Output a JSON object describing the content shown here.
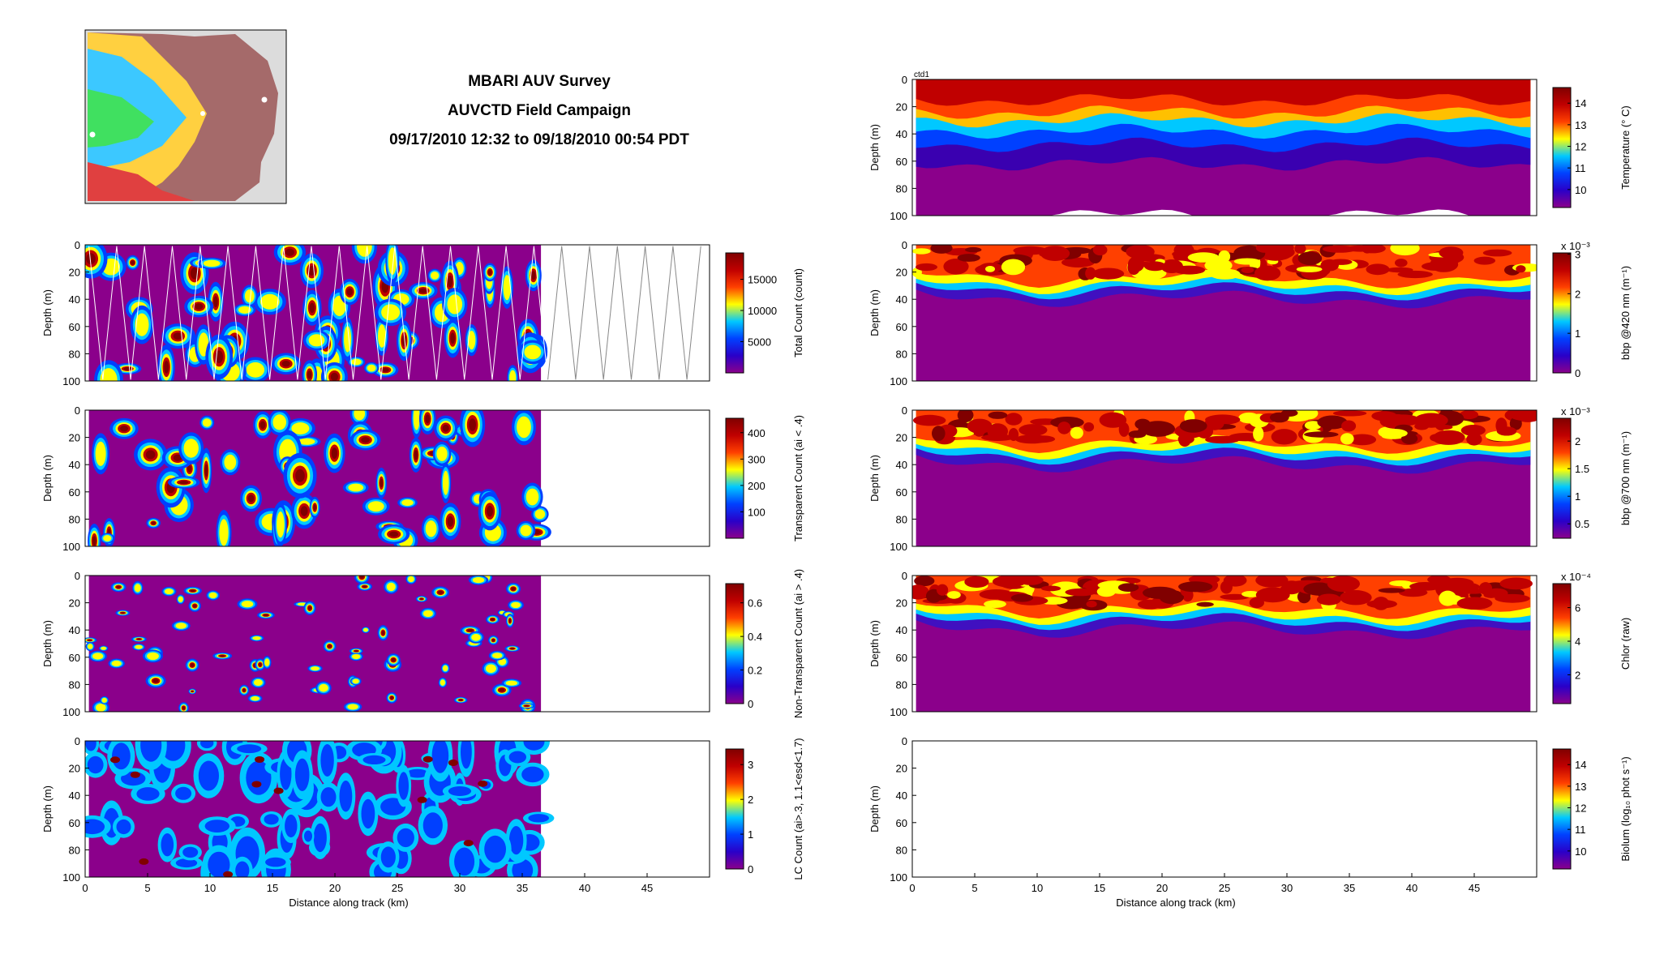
{
  "header": {
    "title_lines": [
      "MBARI AUV Survey",
      "AUVCTD Field Campaign",
      "09/17/2010 12:32 to 09/18/2010 00:54 PDT"
    ]
  },
  "colormap": [
    "#8b008b",
    "#2a00c8",
    "#0040ff",
    "#00c8ff",
    "#ffff00",
    "#ff4000",
    "#c00000",
    "#800000"
  ],
  "chart_data": [
    {
      "type": "heatmap",
      "id": "total-count",
      "column": "left",
      "row": 1,
      "ylabel": "Depth (m)",
      "xlabel": "",
      "xlim": [
        0,
        50
      ],
      "ylim": [
        100,
        0
      ],
      "yticks": [
        0,
        20,
        40,
        60,
        80,
        100
      ],
      "xticks": [],
      "data_extent_km": 36.5,
      "has_tracks": true,
      "colorbar": {
        "label": "Total Count (count)",
        "ticks": [
          "5000",
          "10000",
          "15000"
        ],
        "tickpos": [
          0.26,
          0.52,
          0.78
        ],
        "exponent": ""
      }
    },
    {
      "type": "heatmap",
      "id": "transparent-count",
      "column": "left",
      "row": 2,
      "ylabel": "Depth (m)",
      "xlabel": "",
      "xlim": [
        0,
        50
      ],
      "ylim": [
        100,
        0
      ],
      "yticks": [
        0,
        20,
        40,
        60,
        80,
        100
      ],
      "xticks": [],
      "data_extent_km": 36.5,
      "has_tracks": false,
      "colorbar": {
        "label": "Transparent Count (ai < .4)",
        "ticks": [
          "100",
          "200",
          "300",
          "400"
        ],
        "tickpos": [
          0.22,
          0.44,
          0.66,
          0.88
        ],
        "exponent": ""
      }
    },
    {
      "type": "heatmap",
      "id": "non-transparent-count",
      "column": "left",
      "row": 3,
      "ylabel": "Depth (m)",
      "xlabel": "",
      "xlim": [
        0,
        50
      ],
      "ylim": [
        100,
        0
      ],
      "yticks": [
        0,
        20,
        40,
        60,
        80,
        100
      ],
      "xticks": [],
      "data_extent_km": 36.5,
      "has_tracks": false,
      "colorbar": {
        "label": "Non-Transparent Count (ai > .4)",
        "ticks": [
          "0",
          "0.2",
          "0.4",
          "0.6"
        ],
        "tickpos": [
          0.0,
          0.28,
          0.56,
          0.84
        ],
        "exponent": ""
      }
    },
    {
      "type": "heatmap",
      "id": "lc-count",
      "column": "left",
      "row": 4,
      "ylabel": "Depth (m)",
      "xlabel": "Distance along track (km)",
      "xlim": [
        0,
        50
      ],
      "ylim": [
        100,
        0
      ],
      "yticks": [
        0,
        20,
        40,
        60,
        80,
        100
      ],
      "xticks": [
        0,
        5,
        10,
        15,
        20,
        25,
        30,
        35,
        40,
        45
      ],
      "data_extent_km": 36.5,
      "has_tracks": false,
      "colorbar": {
        "label": "LC Count (ai>.3, 1.1<esd<1.7)",
        "ticks": [
          "0",
          "1",
          "2",
          "3"
        ],
        "tickpos": [
          0.0,
          0.29,
          0.58,
          0.87
        ],
        "exponent": ""
      }
    },
    {
      "type": "heatmap",
      "id": "temperature",
      "column": "right",
      "row": 0,
      "corner_label": "ctd1",
      "ylabel": "Depth (m)",
      "xlabel": "",
      "xlim": [
        0,
        50
      ],
      "ylim": [
        100,
        0
      ],
      "yticks": [
        0,
        20,
        40,
        60,
        80,
        100
      ],
      "xticks": [],
      "data_extent_km": 49.5,
      "has_tracks": false,
      "field": "temperature",
      "colorbar": {
        "label": "Temperature (° C)",
        "ticks": [
          "10",
          "11",
          "12",
          "13",
          "14"
        ],
        "tickpos": [
          0.15,
          0.33,
          0.51,
          0.69,
          0.87
        ],
        "exponent": ""
      }
    },
    {
      "type": "heatmap",
      "id": "bbp420",
      "column": "right",
      "row": 1,
      "ylabel": "Depth (m)",
      "xlabel": "",
      "xlim": [
        0,
        50
      ],
      "ylim": [
        100,
        0
      ],
      "yticks": [
        0,
        20,
        40,
        60,
        80,
        100
      ],
      "xticks": [],
      "data_extent_km": 49.5,
      "has_tracks": false,
      "field": "layer",
      "colorbar": {
        "label": "bbp @420 nm (m⁻¹)",
        "ticks": [
          "0",
          "1",
          "2",
          "3"
        ],
        "tickpos": [
          0.0,
          0.33,
          0.66,
          0.99
        ],
        "exponent": "x 10⁻³"
      }
    },
    {
      "type": "heatmap",
      "id": "bbp700",
      "column": "right",
      "row": 2,
      "ylabel": "Depth (m)",
      "xlabel": "",
      "xlim": [
        0,
        50
      ],
      "ylim": [
        100,
        0
      ],
      "yticks": [
        0,
        20,
        40,
        60,
        80,
        100
      ],
      "xticks": [],
      "data_extent_km": 49.5,
      "has_tracks": false,
      "field": "layer",
      "colorbar": {
        "label": "bbp @700 nm (m⁻¹)",
        "ticks": [
          "0.5",
          "1",
          "1.5",
          "2"
        ],
        "tickpos": [
          0.12,
          0.35,
          0.58,
          0.81
        ],
        "exponent": "x 10⁻³"
      }
    },
    {
      "type": "heatmap",
      "id": "chlor",
      "column": "right",
      "row": 3,
      "ylabel": "Depth (m)",
      "xlabel": "",
      "xlim": [
        0,
        50
      ],
      "ylim": [
        100,
        0
      ],
      "yticks": [
        0,
        20,
        40,
        60,
        80,
        100
      ],
      "xticks": [],
      "data_extent_km": 49.5,
      "has_tracks": false,
      "field": "layer",
      "colorbar": {
        "label": "Chlor (raw)",
        "ticks": [
          "2",
          "4",
          "6"
        ],
        "tickpos": [
          0.24,
          0.52,
          0.8
        ],
        "exponent": "x 10⁻⁴"
      }
    },
    {
      "type": "heatmap",
      "id": "biolum",
      "column": "right",
      "row": 4,
      "ylabel": "Depth (m)",
      "xlabel": "Distance along track (km)",
      "xlim": [
        0,
        50
      ],
      "ylim": [
        100,
        0
      ],
      "yticks": [
        0,
        20,
        40,
        60,
        80,
        100
      ],
      "xticks": [
        0,
        5,
        10,
        15,
        20,
        25,
        30,
        35,
        40,
        45
      ],
      "data_extent_km": 0,
      "has_tracks": false,
      "colorbar": {
        "label": "Biolum (log₁₀ phot s⁻¹)",
        "ticks": [
          "10",
          "11",
          "12",
          "13",
          "14"
        ],
        "tickpos": [
          0.15,
          0.33,
          0.51,
          0.69,
          0.87
        ],
        "exponent": ""
      }
    }
  ]
}
